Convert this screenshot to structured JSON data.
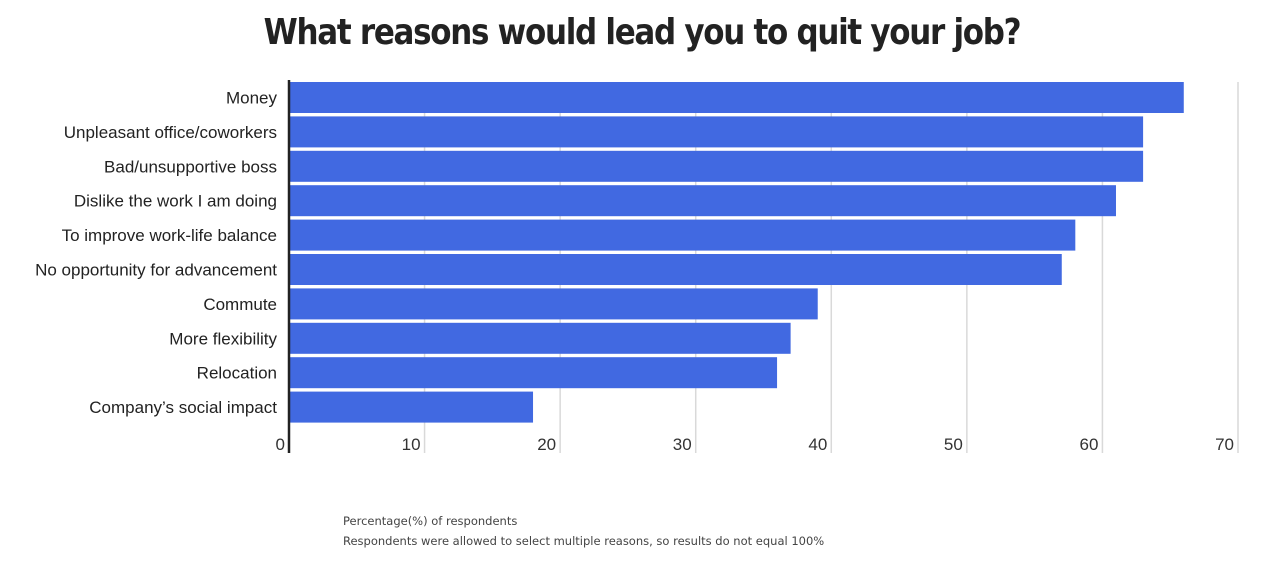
{
  "chart_data": {
    "type": "bar",
    "orientation": "horizontal",
    "title": "What reasons would lead you to quit your job?",
    "categories": [
      "Money",
      "Unpleasant office/coworkers",
      "Bad/unsupportive boss",
      "Dislike the work I am doing",
      "To improve work-life balance",
      "No opportunity for advancement",
      "Commute",
      "More flexibility",
      "Relocation",
      "Company’s social impact"
    ],
    "values": [
      66,
      63,
      63,
      61,
      58,
      57,
      39,
      37,
      36,
      18
    ],
    "xlim": [
      0,
      70
    ],
    "xticks": [
      "0",
      "10",
      "20",
      "30",
      "40",
      "50",
      "60",
      "70"
    ],
    "grid": true,
    "bar_color": "#4169e1",
    "notes": [
      "Percentage(%) of respondents",
      "Respondents were allowed to select multiple reasons, so results do not equal 100%"
    ]
  }
}
